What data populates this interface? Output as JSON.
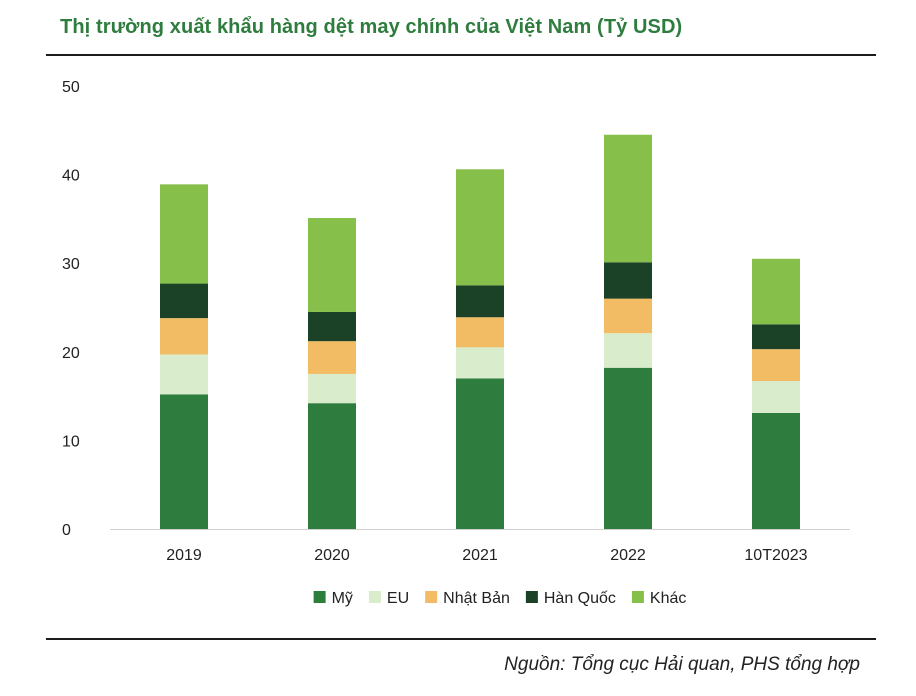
{
  "title": "Thị trường xuất khẩu hàng dệt may chính của Việt Nam (Tỷ USD)",
  "source": "Nguồn: Tổng cục Hải quan, PHS tổng hợp",
  "chart_data": {
    "type": "bar",
    "stacked": true,
    "title": "Thị trường xuất khẩu hàng dệt may chính của Việt Nam (Tỷ USD)",
    "xlabel": "",
    "ylabel": "",
    "categories": [
      "2019",
      "2020",
      "2021",
      "2022",
      "10T2023"
    ],
    "ylim": [
      0,
      50
    ],
    "yticks": [
      "0",
      "10",
      "20",
      "30",
      "40",
      "50"
    ],
    "grid": false,
    "legend_position": "bottom",
    "series": [
      {
        "name": "Mỹ",
        "color": "#2e7d3e",
        "values": [
          15.2,
          14.2,
          17.0,
          18.2,
          13.1
        ]
      },
      {
        "name": "EU",
        "color": "#d9edcd",
        "values": [
          4.5,
          3.3,
          3.5,
          3.9,
          3.6
        ]
      },
      {
        "name": "Nhật Bản",
        "color": "#f2bc65",
        "values": [
          4.1,
          3.7,
          3.4,
          3.9,
          3.6
        ]
      },
      {
        "name": "Hàn Quốc",
        "color": "#1b4226",
        "values": [
          3.9,
          3.3,
          3.6,
          4.1,
          2.8
        ]
      },
      {
        "name": "Khác",
        "color": "#86bf4a",
        "values": [
          11.2,
          10.6,
          13.1,
          14.4,
          7.4
        ]
      }
    ]
  }
}
